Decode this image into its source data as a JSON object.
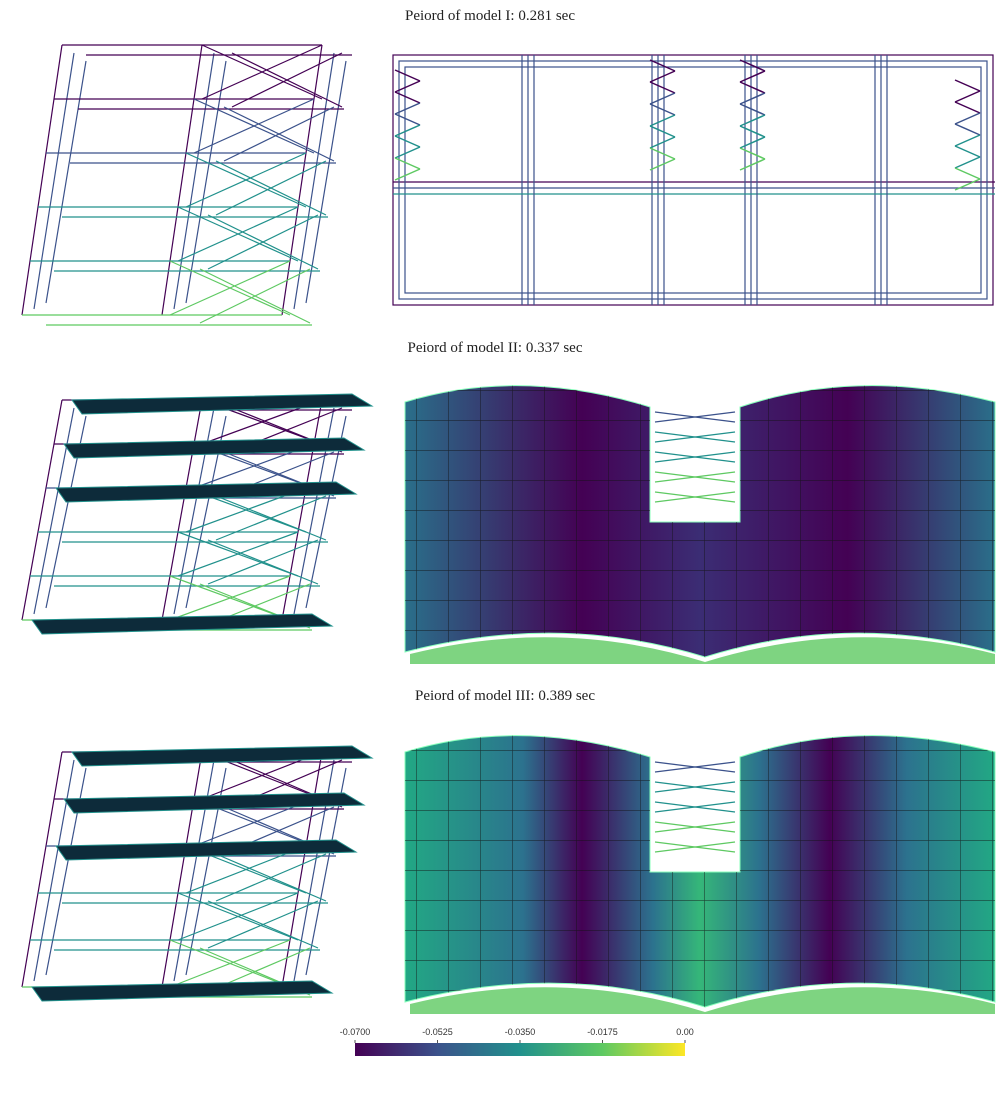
{
  "panels": [
    {
      "caption": "Peiord of model I: 0.281 sec"
    },
    {
      "caption": "Peiord of model II: 0.337 sec"
    },
    {
      "caption": "Peiord of model III: 0.389 sec"
    }
  ],
  "colorbar": {
    "lim": [
      -0.07,
      0
    ],
    "ticks": [
      {
        "value": -0.07,
        "label": "-0.0700"
      },
      {
        "value": -0.0525,
        "label": "-0.0525"
      },
      {
        "value": -0.035,
        "label": "-0.0350"
      },
      {
        "value": -0.0175,
        "label": "-0.0175"
      },
      {
        "value": 0,
        "label": "0.00"
      }
    ],
    "colors": [
      "#440154",
      "#3b528b",
      "#21918c",
      "#5ec962",
      "#fde725"
    ]
  }
}
